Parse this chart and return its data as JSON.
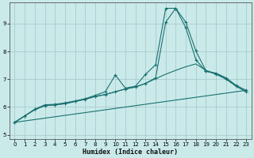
{
  "xlabel": "Humidex (Indice chaleur)",
  "bg_color": "#caeaea",
  "grid_color": "#aacccc",
  "line_color": "#1a7070",
  "xlim": [
    -0.5,
    23.5
  ],
  "ylim": [
    4.85,
    9.75
  ],
  "xticks": [
    0,
    1,
    2,
    3,
    4,
    5,
    6,
    7,
    8,
    9,
    10,
    11,
    12,
    13,
    14,
    15,
    16,
    17,
    18,
    19,
    20,
    21,
    22,
    23
  ],
  "yticks": [
    5,
    6,
    7,
    8,
    9
  ],
  "line_peak1": [
    5.45,
    5.68,
    5.92,
    6.08,
    6.1,
    6.15,
    6.22,
    6.3,
    6.42,
    6.55,
    7.15,
    6.68,
    6.75,
    7.18,
    7.52,
    9.55,
    9.55,
    8.85,
    7.7,
    7.28,
    7.22,
    7.05,
    6.78,
    6.6
  ],
  "line_peak2": [
    5.45,
    5.68,
    5.92,
    6.05,
    6.08,
    6.12,
    6.2,
    6.28,
    6.38,
    6.45,
    6.55,
    6.65,
    6.72,
    6.85,
    7.05,
    9.05,
    9.55,
    9.05,
    8.02,
    7.3,
    7.18,
    7.0,
    6.75,
    6.55
  ],
  "line_arc": [
    5.45,
    5.68,
    5.9,
    6.05,
    6.08,
    6.12,
    6.2,
    6.28,
    6.38,
    6.45,
    6.55,
    6.65,
    6.72,
    6.85,
    7.02,
    7.18,
    7.32,
    7.45,
    7.55,
    7.32,
    7.2,
    7.02,
    6.75,
    6.55
  ],
  "line_diag_y0": 5.45,
  "line_diag_y1": 6.6
}
